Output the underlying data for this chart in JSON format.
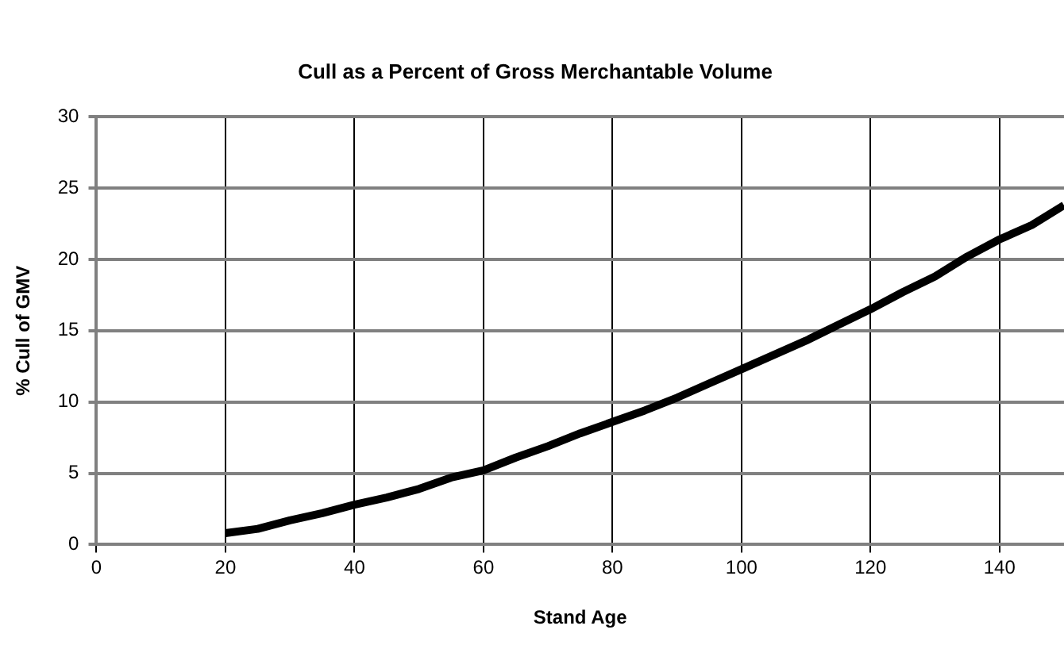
{
  "chart_data": {
    "type": "line",
    "title": "Cull as a Percent of Gross Merchantable Volume",
    "xlabel": "Stand Age",
    "ylabel": "% Cull of GMV",
    "x": [
      20,
      25,
      30,
      35,
      40,
      45,
      50,
      55,
      60,
      65,
      70,
      75,
      80,
      85,
      90,
      95,
      100,
      105,
      110,
      115,
      120,
      125,
      130,
      135,
      140,
      145,
      150
    ],
    "series": [
      {
        "color": "#000000",
        "values": [
          0.8,
          1.1,
          1.7,
          2.2,
          2.8,
          3.3,
          3.9,
          4.7,
          5.2,
          6.1,
          6.9,
          7.8,
          8.6,
          9.4,
          10.3,
          11.3,
          12.3,
          13.3,
          14.3,
          15.4,
          16.5,
          17.7,
          18.8,
          20.2,
          21.4,
          22.4,
          23.8
        ]
      }
    ],
    "xlim": [
      0,
      150
    ],
    "xticks": [
      0,
      20,
      40,
      60,
      80,
      100,
      120,
      140
    ],
    "ylim": [
      0,
      30
    ],
    "yticks": [
      0,
      5,
      10,
      15,
      20,
      25,
      30
    ],
    "grid": true,
    "legend": false,
    "marker": "none",
    "line_style": "solid"
  }
}
